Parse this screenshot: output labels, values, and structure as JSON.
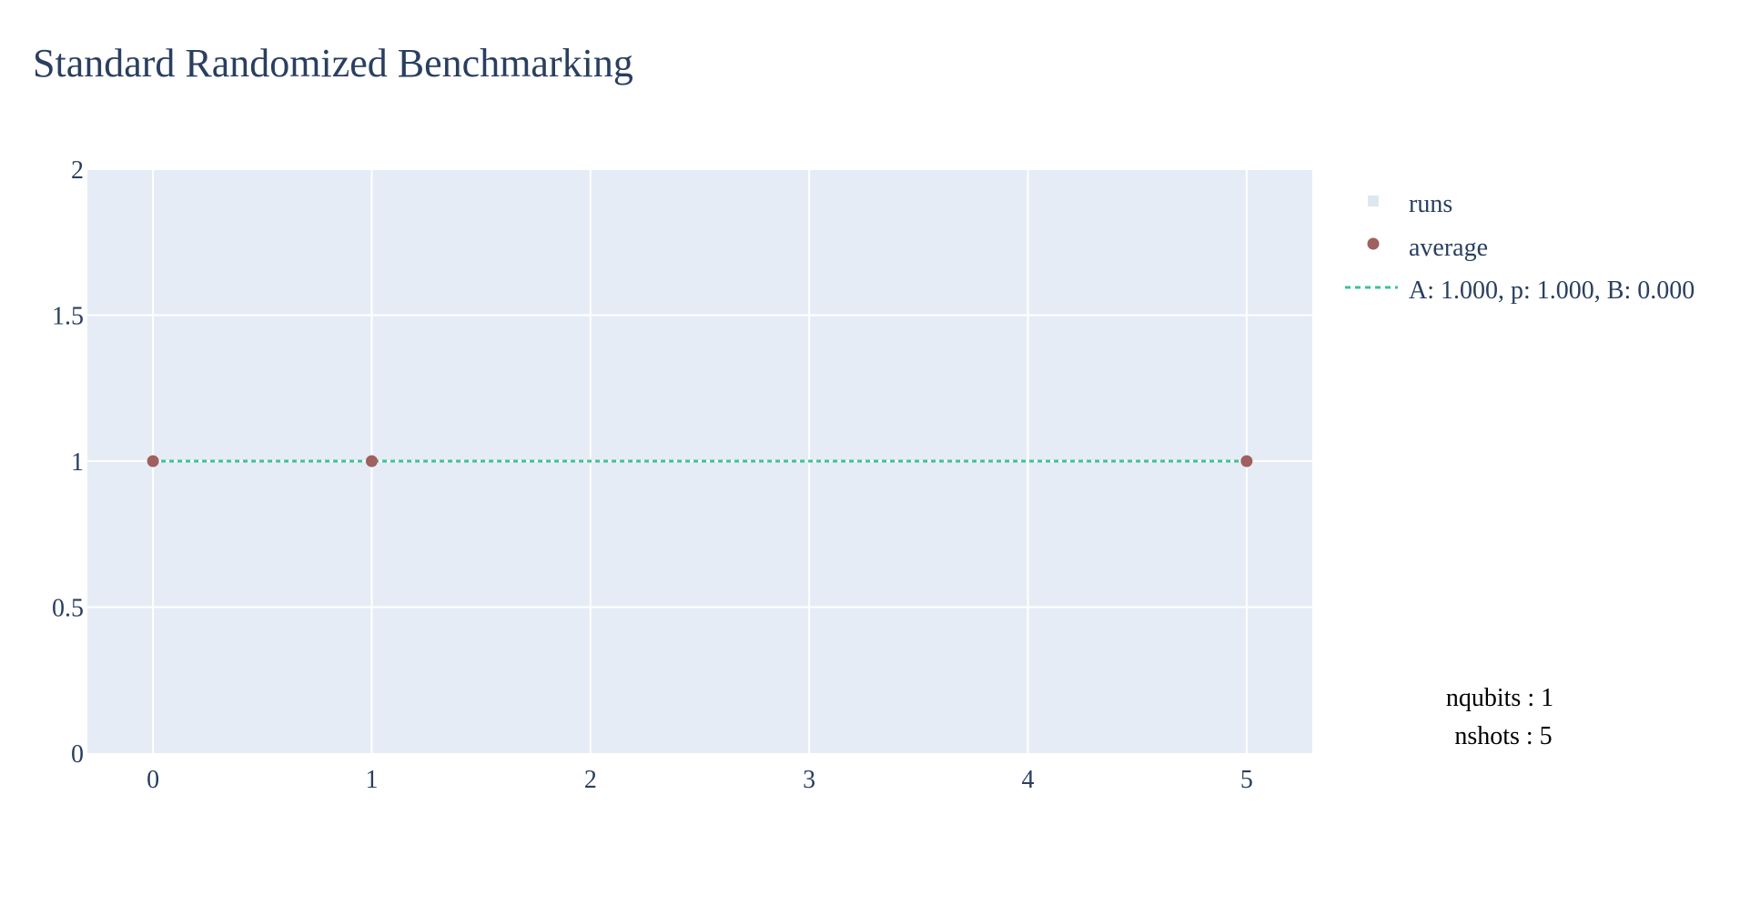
{
  "chart_data": {
    "type": "scatter",
    "title": "Standard Randomized Benchmarking",
    "xlabel": "",
    "ylabel": "",
    "xlim": [
      -0.3,
      5.3
    ],
    "ylim": [
      0,
      2
    ],
    "x_ticks": [
      0,
      1,
      2,
      3,
      4,
      5
    ],
    "y_ticks": [
      0,
      0.5,
      1,
      1.5,
      2
    ],
    "x_tick_labels": [
      "0",
      "1",
      "2",
      "3",
      "4",
      "5"
    ],
    "y_tick_labels": [
      "0",
      "0.5",
      "1",
      "1.5",
      "2"
    ],
    "grid": true,
    "legend_position": "right",
    "series": [
      {
        "name": "runs",
        "kind": "markers",
        "color": "#dde8ee",
        "x": [],
        "y": []
      },
      {
        "name": "average",
        "kind": "markers",
        "color": "#a0605e",
        "x": [
          0,
          1,
          5
        ],
        "y": [
          1,
          1,
          1
        ]
      },
      {
        "name": "A: 1.000, p: 1.000, B: 0.000",
        "kind": "dotted-line",
        "color": "#3cc194",
        "x": [
          0,
          5
        ],
        "y": [
          1,
          1
        ]
      }
    ],
    "annotations": [
      "nqubits : 1",
      "nshots : 5"
    ],
    "colors": {
      "plot_bg": "#e5ecf6",
      "grid": "#ffffff",
      "text": "#2a3f5f"
    }
  }
}
